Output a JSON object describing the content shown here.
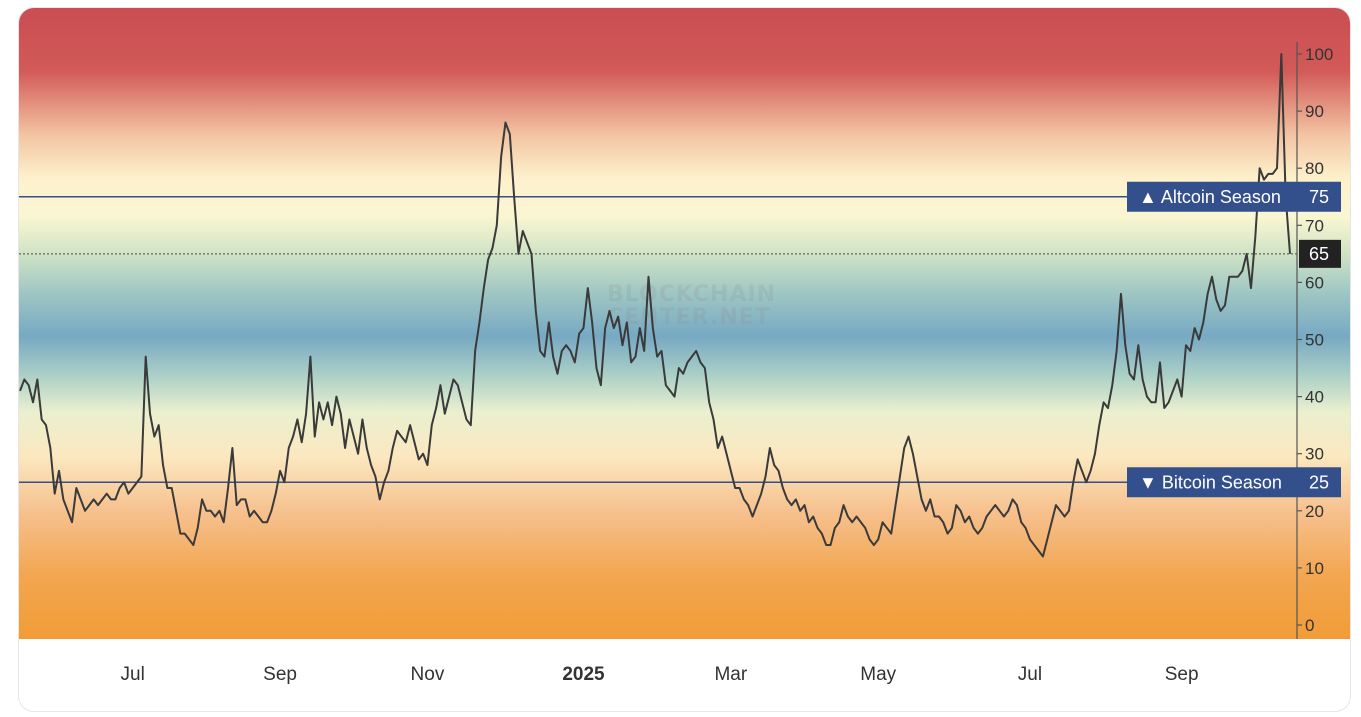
{
  "chart_data": {
    "type": "line",
    "title": "",
    "xlabel": "",
    "ylabel": "",
    "ylim": [
      0,
      100
    ],
    "yticks": [
      0,
      10,
      20,
      30,
      40,
      50,
      60,
      70,
      80,
      90,
      100
    ],
    "x_tick_labels": [
      {
        "label": "Jul",
        "index": 26,
        "strong": false
      },
      {
        "label": "Sep",
        "index": 60,
        "strong": false
      },
      {
        "label": "Nov",
        "index": 94,
        "strong": false
      },
      {
        "label": "2025",
        "index": 130,
        "strong": true
      },
      {
        "label": "Mar",
        "index": 164,
        "strong": false
      },
      {
        "label": "May",
        "index": 198,
        "strong": false
      },
      {
        "label": "Jul",
        "index": 233,
        "strong": false
      },
      {
        "label": "Sep",
        "index": 268,
        "strong": false
      }
    ],
    "thresholds": [
      {
        "name": "altcoin-season",
        "label": "▲ Altcoin Season",
        "value": 75,
        "value_label": "75"
      },
      {
        "name": "bitcoin-season",
        "label": "▼ Bitcoin Season",
        "value": 25,
        "value_label": "25"
      }
    ],
    "current_value": 65,
    "current_value_label": "65",
    "watermark": [
      "BLOCKCHAIN",
      "CENTER.NET"
    ],
    "series": [
      {
        "values": [
          41,
          43,
          42,
          39,
          43,
          36,
          35,
          31,
          23,
          27,
          22,
          20,
          18,
          24,
          22,
          20,
          21,
          22,
          21,
          22,
          23,
          22,
          22,
          24,
          25,
          23,
          24,
          25,
          26,
          47,
          37,
          33,
          35,
          28,
          24,
          24,
          20,
          16,
          16,
          15,
          14,
          17,
          22,
          20,
          20,
          19,
          20,
          18,
          24,
          31,
          21,
          22,
          22,
          19,
          20,
          19,
          18,
          18,
          20,
          23,
          27,
          25,
          31,
          33,
          36,
          32,
          37,
          47,
          33,
          39,
          36,
          39,
          35,
          40,
          37,
          31,
          36,
          33,
          30,
          36,
          31,
          28,
          26,
          22,
          25,
          27,
          31,
          34,
          33,
          32,
          35,
          32,
          29,
          30,
          28,
          35,
          38,
          42,
          37,
          40,
          43,
          42,
          39,
          36,
          35,
          48,
          53,
          59,
          64,
          66,
          70,
          82,
          88,
          86,
          75,
          65,
          69,
          67,
          65,
          55,
          48,
          47,
          53,
          47,
          44,
          48,
          49,
          48,
          46,
          51,
          52,
          59,
          53,
          45,
          42,
          52,
          55,
          52,
          54,
          49,
          53,
          46,
          47,
          52,
          48,
          61,
          52,
          47,
          48,
          42,
          41,
          40,
          45,
          44,
          46,
          47,
          48,
          46,
          45,
          39,
          36,
          31,
          33,
          30,
          27,
          24,
          24,
          22,
          21,
          19,
          21,
          23,
          26,
          31,
          28,
          27,
          24,
          22,
          21,
          22,
          20,
          21,
          18,
          19,
          17,
          16,
          14,
          14,
          17,
          18,
          21,
          19,
          18,
          19,
          18,
          17,
          15,
          14,
          15,
          18,
          17,
          16,
          21,
          26,
          31,
          33,
          30,
          26,
          22,
          20,
          22,
          19,
          19,
          18,
          16,
          17,
          21,
          20,
          18,
          19,
          17,
          16,
          17,
          19,
          20,
          21,
          20,
          19,
          20,
          22,
          21,
          18,
          17,
          15,
          14,
          13,
          12,
          15,
          18,
          21,
          20,
          19,
          20,
          25,
          29,
          27,
          25,
          27,
          30,
          35,
          39,
          38,
          42,
          48,
          58,
          49,
          44,
          43,
          49,
          43,
          40,
          39,
          39,
          46,
          38,
          39,
          41,
          43,
          40,
          49,
          48,
          52,
          50,
          53,
          58,
          61,
          57,
          55,
          56,
          61,
          61,
          61,
          62,
          65,
          59,
          68,
          80,
          78,
          79,
          79,
          80,
          100,
          75,
          65
        ]
      }
    ]
  }
}
